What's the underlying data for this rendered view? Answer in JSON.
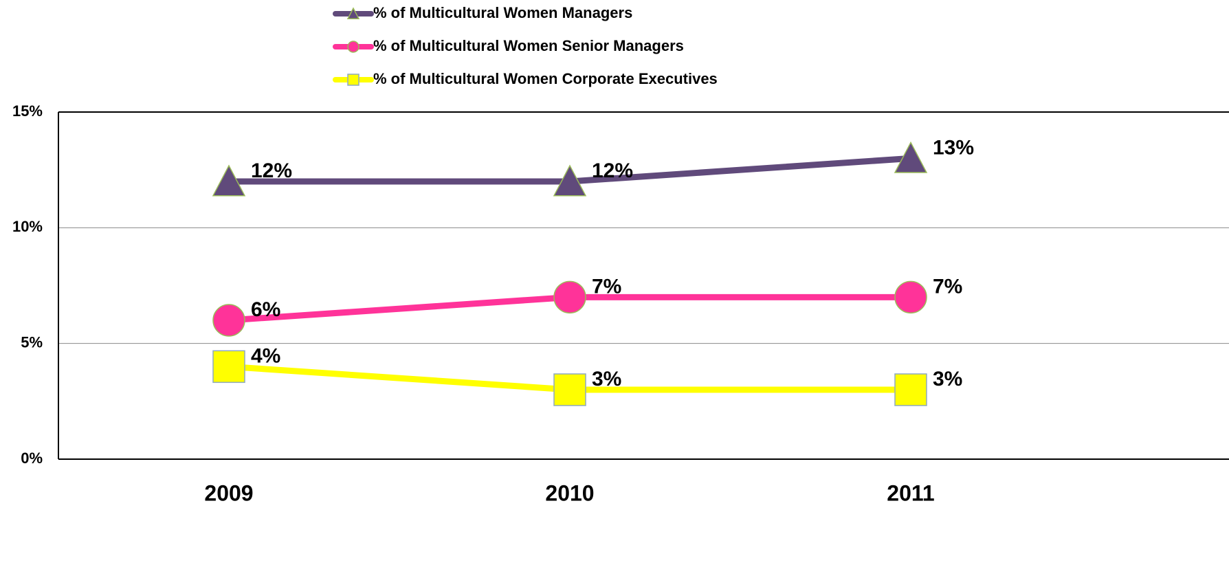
{
  "chart_data": {
    "type": "line",
    "categories": [
      "2009",
      "2010",
      "2011"
    ],
    "series": [
      {
        "name": "% of Multicultural Women Managers",
        "color": "#604a7b",
        "marker": "triangle",
        "marker_edge_color": "#9bbb59",
        "values": [
          12,
          12,
          13
        ],
        "value_labels": [
          "12%",
          "12%",
          "13%"
        ]
      },
      {
        "name": "% of Multicultural Women Senior Managers",
        "color": "#ff3399",
        "marker": "circle",
        "marker_edge_color": "#9bbb59",
        "values": [
          6,
          7,
          7
        ],
        "value_labels": [
          "6%",
          "7%",
          "7%"
        ]
      },
      {
        "name": "% of Multicultural Women Corporate Executives",
        "color": "#ffff00",
        "marker": "square",
        "marker_edge_color": "#8ea9c1",
        "values": [
          4,
          3,
          3
        ],
        "value_labels": [
          "4%",
          "3%",
          "3%"
        ]
      }
    ],
    "ylim": [
      0,
      15
    ],
    "yticks": [
      {
        "value": 0,
        "label": "0%"
      },
      {
        "value": 5,
        "label": "5%"
      },
      {
        "value": 10,
        "label": "10%"
      },
      {
        "value": 15,
        "label": "15%"
      }
    ],
    "grid": true,
    "legend": "top"
  }
}
